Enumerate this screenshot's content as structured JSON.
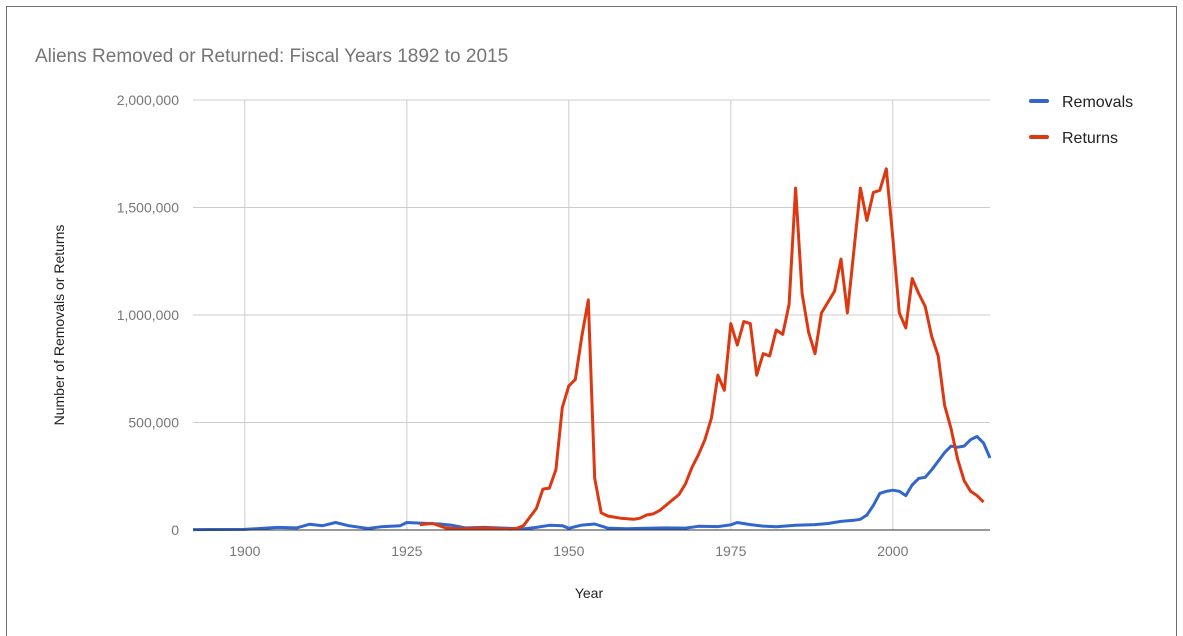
{
  "chart_data": {
    "type": "line",
    "title": "Aliens Removed or Returned: Fiscal Years 1892 to 2015",
    "xlabel": "Year",
    "ylabel": "Number of Removals or Returns",
    "xlim": [
      1892,
      2015
    ],
    "ylim": [
      0,
      2000000
    ],
    "x_ticks": [
      1900,
      1925,
      1950,
      1975,
      2000
    ],
    "x_tick_labels": [
      "1900",
      "1925",
      "1950",
      "1975",
      "2000"
    ],
    "y_ticks": [
      0,
      500000,
      1000000,
      1500000,
      2000000
    ],
    "y_tick_labels": [
      "0",
      "500,000",
      "1,000,000",
      "1,500,000",
      "2,000,000"
    ],
    "grid": true,
    "legend_position": "right",
    "series": [
      {
        "name": "Removals",
        "color": "#3366cc",
        "points": [
          [
            1892,
            2000
          ],
          [
            1895,
            2500
          ],
          [
            1900,
            3000
          ],
          [
            1905,
            12000
          ],
          [
            1908,
            10000
          ],
          [
            1910,
            27000
          ],
          [
            1912,
            20000
          ],
          [
            1914,
            35000
          ],
          [
            1916,
            20000
          ],
          [
            1919,
            7000
          ],
          [
            1921,
            15000
          ],
          [
            1924,
            20000
          ],
          [
            1925,
            35000
          ],
          [
            1927,
            32000
          ],
          [
            1930,
            28000
          ],
          [
            1932,
            22000
          ],
          [
            1934,
            10000
          ],
          [
            1937,
            12000
          ],
          [
            1940,
            9000
          ],
          [
            1943,
            5000
          ],
          [
            1945,
            12000
          ],
          [
            1947,
            22000
          ],
          [
            1949,
            20000
          ],
          [
            1950,
            8000
          ],
          [
            1952,
            23000
          ],
          [
            1954,
            28000
          ],
          [
            1956,
            9000
          ],
          [
            1959,
            6000
          ],
          [
            1962,
            8000
          ],
          [
            1965,
            10000
          ],
          [
            1968,
            9000
          ],
          [
            1970,
            17000
          ],
          [
            1973,
            16000
          ],
          [
            1975,
            24000
          ],
          [
            1976,
            35000
          ],
          [
            1978,
            25000
          ],
          [
            1980,
            18000
          ],
          [
            1982,
            15000
          ],
          [
            1985,
            22000
          ],
          [
            1988,
            25000
          ],
          [
            1990,
            30000
          ],
          [
            1992,
            40000
          ],
          [
            1994,
            45000
          ],
          [
            1995,
            50000
          ],
          [
            1996,
            70000
          ],
          [
            1997,
            115000
          ],
          [
            1998,
            170000
          ],
          [
            1999,
            180000
          ],
          [
            2000,
            185000
          ],
          [
            2001,
            180000
          ],
          [
            2002,
            160000
          ],
          [
            2003,
            210000
          ],
          [
            2004,
            240000
          ],
          [
            2005,
            245000
          ],
          [
            2006,
            280000
          ],
          [
            2007,
            320000
          ],
          [
            2008,
            360000
          ],
          [
            2009,
            390000
          ],
          [
            2010,
            385000
          ],
          [
            2011,
            390000
          ],
          [
            2012,
            420000
          ],
          [
            2013,
            435000
          ],
          [
            2014,
            405000
          ],
          [
            2015,
            335000
          ]
        ]
      },
      {
        "name": "Returns",
        "color": "#dc3912",
        "points": [
          [
            1927,
            25000
          ],
          [
            1929,
            30000
          ],
          [
            1931,
            10000
          ],
          [
            1933,
            5000
          ],
          [
            1937,
            10000
          ],
          [
            1940,
            5000
          ],
          [
            1941,
            4000
          ],
          [
            1942,
            8000
          ],
          [
            1943,
            20000
          ],
          [
            1944,
            60000
          ],
          [
            1945,
            100000
          ],
          [
            1946,
            190000
          ],
          [
            1947,
            195000
          ],
          [
            1948,
            280000
          ],
          [
            1949,
            570000
          ],
          [
            1950,
            670000
          ],
          [
            1951,
            700000
          ],
          [
            1952,
            900000
          ],
          [
            1953,
            1070000
          ],
          [
            1954,
            240000
          ],
          [
            1955,
            80000
          ],
          [
            1956,
            65000
          ],
          [
            1957,
            60000
          ],
          [
            1958,
            55000
          ],
          [
            1960,
            50000
          ],
          [
            1961,
            55000
          ],
          [
            1962,
            70000
          ],
          [
            1963,
            75000
          ],
          [
            1964,
            90000
          ],
          [
            1965,
            115000
          ],
          [
            1966,
            140000
          ],
          [
            1967,
            165000
          ],
          [
            1968,
            215000
          ],
          [
            1969,
            290000
          ],
          [
            1970,
            350000
          ],
          [
            1971,
            420000
          ],
          [
            1972,
            520000
          ],
          [
            1973,
            720000
          ],
          [
            1974,
            650000
          ],
          [
            1975,
            960000
          ],
          [
            1976,
            860000
          ],
          [
            1977,
            970000
          ],
          [
            1978,
            960000
          ],
          [
            1979,
            720000
          ],
          [
            1980,
            820000
          ],
          [
            1981,
            810000
          ],
          [
            1982,
            930000
          ],
          [
            1983,
            910000
          ],
          [
            1984,
            1050000
          ],
          [
            1985,
            1590000
          ],
          [
            1986,
            1100000
          ],
          [
            1987,
            920000
          ],
          [
            1988,
            820000
          ],
          [
            1989,
            1010000
          ],
          [
            1990,
            1060000
          ],
          [
            1991,
            1110000
          ],
          [
            1992,
            1260000
          ],
          [
            1993,
            1010000
          ],
          [
            1994,
            1300000
          ],
          [
            1995,
            1590000
          ],
          [
            1996,
            1440000
          ],
          [
            1997,
            1570000
          ],
          [
            1998,
            1580000
          ],
          [
            1999,
            1680000
          ],
          [
            2000,
            1360000
          ],
          [
            2001,
            1010000
          ],
          [
            2002,
            940000
          ],
          [
            2003,
            1170000
          ],
          [
            2004,
            1100000
          ],
          [
            2005,
            1040000
          ],
          [
            2006,
            900000
          ],
          [
            2007,
            810000
          ],
          [
            2008,
            580000
          ],
          [
            2009,
            470000
          ],
          [
            2010,
            330000
          ],
          [
            2011,
            230000
          ],
          [
            2012,
            180000
          ],
          [
            2013,
            160000
          ],
          [
            2014,
            130000
          ]
        ]
      }
    ]
  }
}
